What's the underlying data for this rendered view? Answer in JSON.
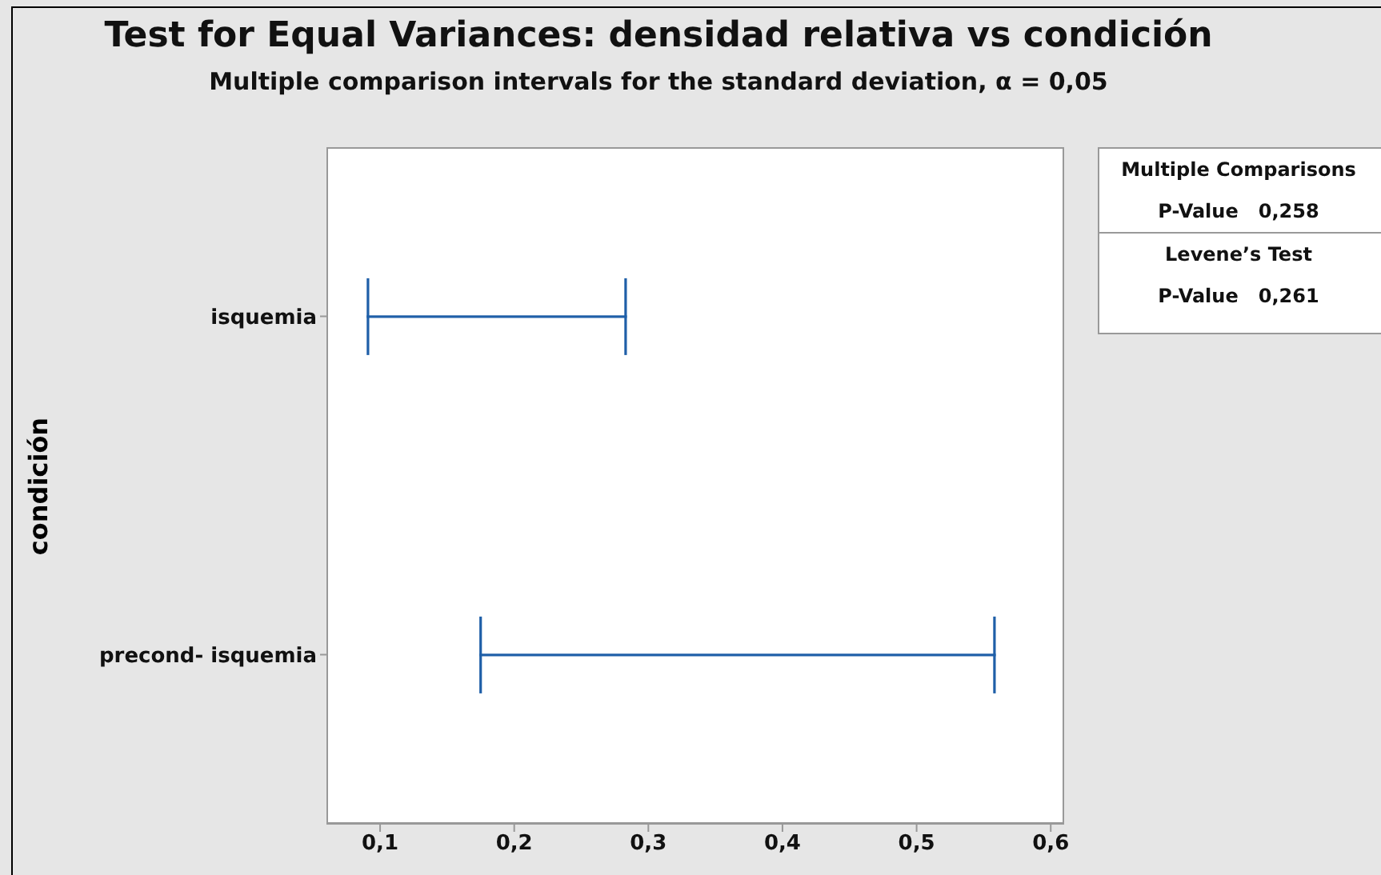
{
  "chart_data": {
    "type": "bar",
    "orientation": "horizontal",
    "title": "Test for Equal Variances: densidad relativa vs condición",
    "subtitle": "Multiple comparison intervals for the standard deviation, α = 0,05",
    "ylabel": "condición",
    "categories": [
      "isquemia",
      "precond- isquemia"
    ],
    "base": [
      0.09,
      0.174
    ],
    "values": [
      0.194,
      0.385
    ],
    "color": "#1f5fa8",
    "xlim": [
      0.06,
      0.61
    ],
    "xticks": [
      {
        "value": 0.1,
        "label": "0,1"
      },
      {
        "value": 0.2,
        "label": "0,2"
      },
      {
        "value": 0.3,
        "label": "0,3"
      },
      {
        "value": 0.4,
        "label": "0,4"
      },
      {
        "value": 0.5,
        "label": "0,5"
      },
      {
        "value": 0.6,
        "label": "0,6"
      }
    ],
    "grid": false,
    "annotations": [
      "Multiple Comparisons",
      "P-Value   0,258",
      "Levene’s Test",
      "P-Value   0,261"
    ]
  }
}
